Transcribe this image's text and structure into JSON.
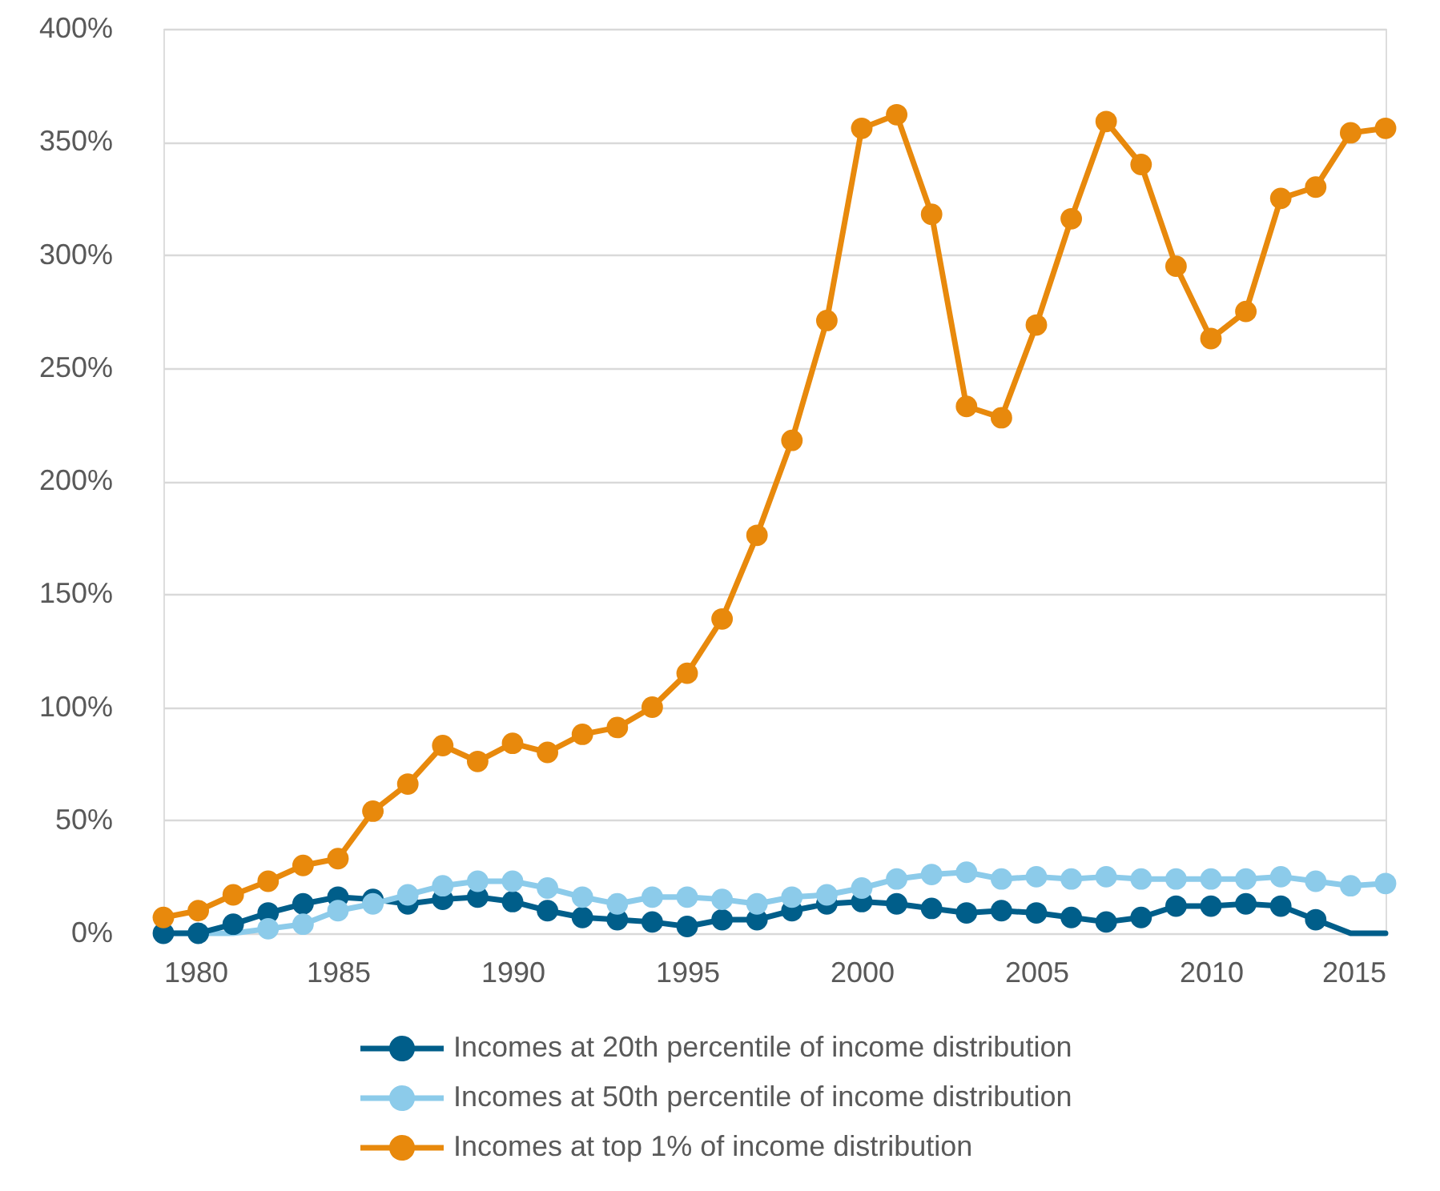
{
  "chart_data": {
    "type": "line",
    "x": [
      1980,
      1981,
      1982,
      1983,
      1984,
      1985,
      1986,
      1987,
      1988,
      1989,
      1990,
      1991,
      1992,
      1993,
      1994,
      1995,
      1996,
      1997,
      1998,
      1999,
      2000,
      2001,
      2002,
      2003,
      2004,
      2005,
      2006,
      2007,
      2008,
      2009,
      2010,
      2011,
      2012,
      2013,
      2014,
      2015
    ],
    "xlim": [
      1980,
      2015
    ],
    "xticks": [
      1980,
      1985,
      1990,
      1995,
      2000,
      2005,
      2010,
      2015
    ],
    "ylim": [
      0,
      400
    ],
    "yticks": [
      {
        "value": 0,
        "label": "0%"
      },
      {
        "value": 50,
        "label": "50%"
      },
      {
        "value": 100,
        "label": "100%"
      },
      {
        "value": 150,
        "label": "150%"
      },
      {
        "value": 200,
        "label": "200%"
      },
      {
        "value": 250,
        "label": "250%"
      },
      {
        "value": 300,
        "label": "300%"
      },
      {
        "value": 350,
        "label": "350%"
      },
      {
        "value": 400,
        "label": "400%"
      }
    ],
    "grid": "y",
    "legend": "bottom",
    "marker": "circle",
    "series": [
      {
        "color": "#005e8a",
        "x": [
          2013,
          2014,
          2015
        ],
        "values": [
          6,
          0,
          0
        ],
        "marker": "none"
      },
      {
        "color": "#8ccbea",
        "x": [
          1980,
          1981,
          1982,
          1983
        ],
        "values": [
          0,
          0,
          0,
          2
        ],
        "marker": "none"
      },
      {
        "name": "Incomes at 20th percentile of income distribution",
        "color": "#005e8a",
        "values": [
          0,
          0,
          4,
          9,
          13,
          16,
          15,
          13,
          15,
          16,
          14,
          10,
          7,
          6,
          5,
          3,
          6,
          6,
          10,
          13,
          14,
          13,
          11,
          9,
          10,
          9,
          7,
          5,
          7,
          12,
          12,
          13,
          12,
          6,
          null,
          null
        ]
      },
      {
        "name": "Incomes at 50th percentile of income distribution",
        "color": "#8ccbea",
        "values": [
          null,
          null,
          null,
          2,
          4,
          10,
          13,
          17,
          21,
          23,
          23,
          20,
          16,
          13,
          16,
          16,
          15,
          13,
          16,
          17,
          20,
          24,
          26,
          27,
          24,
          25,
          24,
          25,
          24,
          24,
          24,
          24,
          25,
          23,
          21,
          22
        ]
      },
      {
        "name": "Incomes at top 1% of income distribution",
        "color": "#e8890c",
        "values": [
          7,
          10,
          17,
          23,
          30,
          33,
          54,
          66,
          83,
          76,
          84,
          80,
          88,
          91,
          100,
          115,
          139,
          176,
          218,
          271,
          356,
          362,
          318,
          233,
          228,
          269,
          316,
          359,
          340,
          295,
          263,
          275,
          325,
          330,
          354,
          356
        ]
      }
    ]
  }
}
